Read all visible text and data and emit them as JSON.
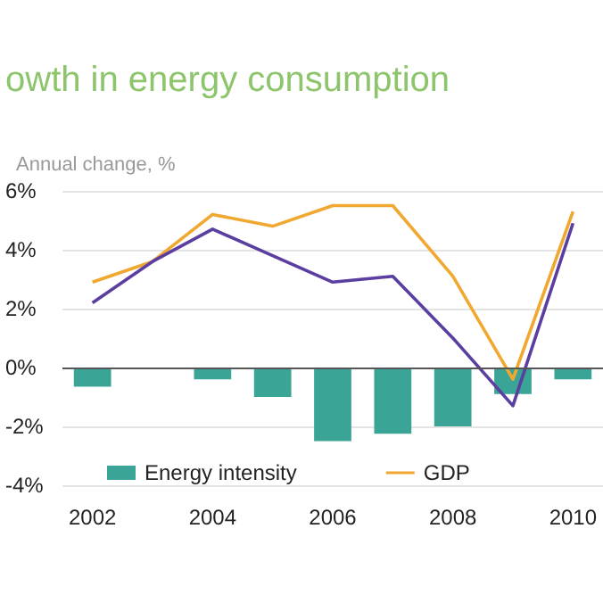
{
  "chart_data": {
    "type": "bar",
    "title": "owth in energy consumption",
    "ylabel": "Annual change, %",
    "categories": [
      "2002",
      null,
      "2004",
      null,
      "2006",
      null,
      "2008",
      null,
      "2010"
    ],
    "series": [
      {
        "name": "Energy intensity",
        "color": "#3aa596",
        "values": [
          -0.65,
          null,
          -0.4,
          -1.0,
          -2.5,
          -2.25,
          -2.0,
          -0.9,
          -0.4
        ]
      },
      {
        "name": "GDP",
        "type": "line",
        "color": "#f0a830",
        "values": [
          2.9,
          3.6,
          5.2,
          4.8,
          5.5,
          5.5,
          3.1,
          -0.4,
          5.3
        ]
      },
      {
        "type": "line",
        "color": "#5b3fa0",
        "values": [
          2.2,
          3.6,
          4.7,
          3.8,
          2.9,
          3.1,
          1.0,
          -1.3,
          4.9
        ]
      }
    ],
    "ylim": [
      -4,
      6
    ],
    "yticks": [
      {
        "value": -4,
        "label": "-4%"
      },
      {
        "value": -2,
        "label": "-2%"
      },
      {
        "value": 0,
        "label": "0%"
      },
      {
        "value": 2,
        "label": "2%"
      },
      {
        "value": 4,
        "label": "4%"
      },
      {
        "value": 6,
        "label": "6%"
      }
    ],
    "grid": "y",
    "legend": "bottom",
    "marker": "none",
    "line_style": "solid"
  }
}
